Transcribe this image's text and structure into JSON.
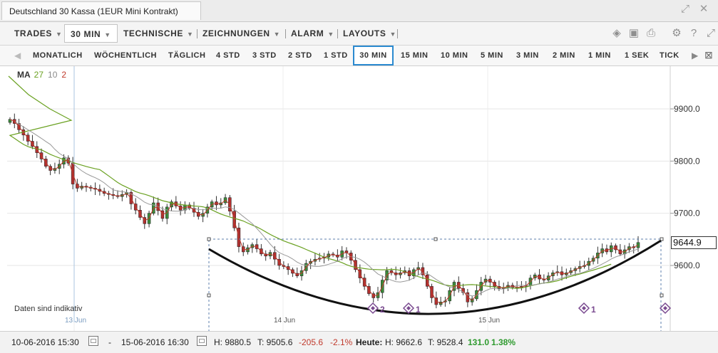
{
  "window": {
    "title": "Deutschland 30 Kassa (1EUR Mini Kontrakt)"
  },
  "menubar": {
    "trades": "TRADES",
    "interval": "30 MIN",
    "technical": "TECHNISCHE",
    "drawings": "ZEICHNUNGEN",
    "alarm": "ALARM",
    "layouts": "LAYOUTS"
  },
  "periods": [
    "MONATLICH",
    "WÖCHENTLICH",
    "TÄGLICH",
    "4 STD",
    "3 STD",
    "2 STD",
    "1 STD",
    "30 MIN",
    "15 MIN",
    "10 MIN",
    "5 MIN",
    "3 MIN",
    "2 MIN",
    "1 MIN",
    "1 SEK",
    "TICK"
  ],
  "selected_period": "30 MIN",
  "legend": {
    "label": "MA",
    "values": [
      "27",
      "10",
      "2"
    ]
  },
  "indicative_note": "Daten sind indikativ",
  "current_price": "9644.9",
  "bottombar": {
    "from": "10-06-2016 15:30",
    "dash": "-",
    "to": "15-06-2016 16:30",
    "high": "H: 9880.5",
    "low": "T: 9505.6",
    "change": "-205.6",
    "change_pct": "-2.1%",
    "today_label": "Heute:",
    "today_high": "H: 9662.6",
    "today_low": "T: 9528.4",
    "today_change": "131.0",
    "today_change_pct": "1.38%"
  },
  "colors": {
    "up": "#3a8a3a",
    "down": "#b03030",
    "ma_long": "#6aa121",
    "ma_mid": "#999999",
    "ma_short": "#c0392b",
    "selected_border": "#2b8ad0",
    "signal": "#7a4a90"
  },
  "chart_data": {
    "type": "candlestick",
    "y_ticks": [
      "9900.0",
      "9800.0",
      "9700.0",
      "9600.0"
    ],
    "x_labels": [
      "13 Jun",
      "14 Jun",
      "15 Jun"
    ],
    "ylim": [
      9480,
      9960
    ],
    "signals": [
      {
        "label": "2"
      },
      {
        "label": "1"
      },
      {
        "label": "1"
      },
      {
        "label": ""
      }
    ],
    "candles_close": [
      9880,
      9872,
      9860,
      9850,
      9838,
      9828,
      9816,
      9804,
      9790,
      9782,
      9786,
      9794,
      9806,
      9796,
      9756,
      9748,
      9752,
      9750,
      9748,
      9746,
      9742,
      9738,
      9736,
      9734,
      9732,
      9736,
      9740,
      9718,
      9706,
      9692,
      9680,
      9700,
      9720,
      9705,
      9690,
      9712,
      9722,
      9714,
      9706,
      9716,
      9710,
      9702,
      9694,
      9700,
      9712,
      9722,
      9716,
      9720,
      9730,
      9704,
      9672,
      9636,
      9626,
      9634,
      9640,
      9632,
      9622,
      9618,
      9625,
      9612,
      9600,
      9598,
      9592,
      9585,
      9580,
      9590,
      9604,
      9608,
      9612,
      9614,
      9616,
      9622,
      9620,
      9616,
      9628,
      9624,
      9610,
      9592,
      9576,
      9560,
      9546,
      9538,
      9548,
      9572,
      9590,
      9586,
      9582,
      9586,
      9590,
      9580,
      9592,
      9596,
      9582,
      9560,
      9538,
      9525,
      9530,
      9532,
      9552,
      9568,
      9556,
      9548,
      9530,
      9536,
      9552,
      9568,
      9574,
      9568,
      9560,
      9556,
      9558,
      9562,
      9558,
      9558,
      9560,
      9562,
      9576,
      9582,
      9574,
      9572,
      9580,
      9586,
      9588,
      9582,
      9586,
      9590,
      9594,
      9598,
      9600,
      9608,
      9614,
      9624,
      9632,
      9626,
      9638,
      9630,
      9622,
      9630,
      9636,
      9634,
      9644
    ]
  }
}
